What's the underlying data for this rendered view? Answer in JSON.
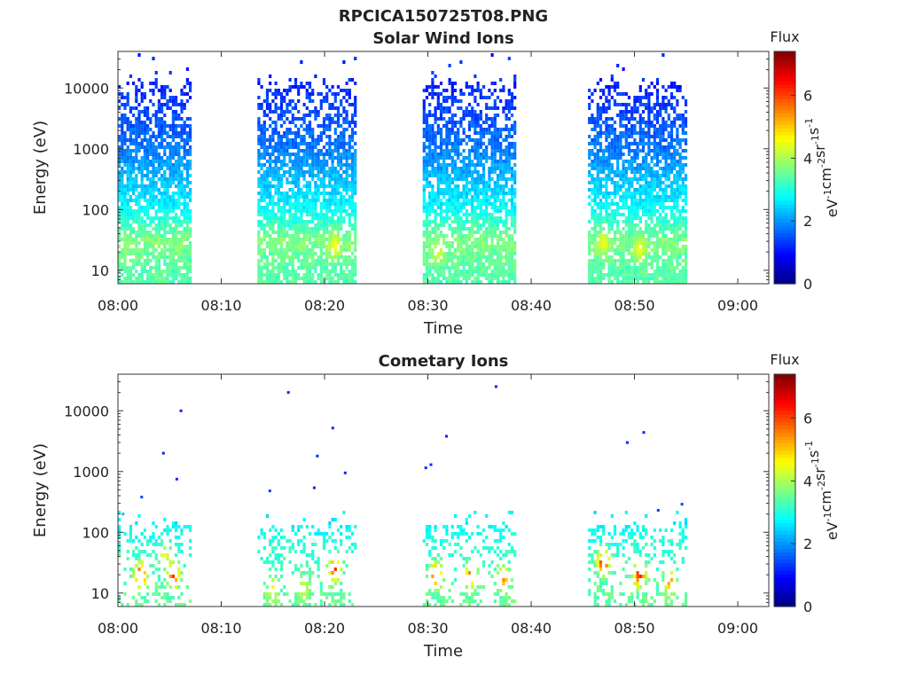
{
  "figure_title": "RPCICA150725T08.PNG",
  "colorbar": {
    "title": "Flux",
    "ticks": [
      "0",
      "2",
      "4",
      "6"
    ],
    "tick_values": [
      0,
      2,
      4,
      6
    ],
    "range": [
      0,
      7.4
    ],
    "unit_parts": [
      "eV",
      "-1",
      "cm",
      "-2",
      "sr",
      "-1",
      "s",
      "-1"
    ]
  },
  "chart_data": [
    {
      "type": "heatmap",
      "title": "Solar Wind Ions",
      "xlabel": "Time",
      "ylabel": "Energy (eV)",
      "x_ticks": [
        "08:00",
        "08:10",
        "08:20",
        "08:30",
        "08:40",
        "08:50",
        "09:00"
      ],
      "x_tick_minutes": [
        0,
        10,
        20,
        30,
        40,
        50,
        60
      ],
      "y_ticks": [
        "10",
        "100",
        "1000",
        "10000"
      ],
      "y_tick_values": [
        10,
        100,
        1000,
        10000
      ],
      "yscale": "log",
      "xlim_minutes": [
        0,
        63
      ],
      "ylim": [
        6,
        40000
      ],
      "colormap": "jet",
      "grid": false,
      "data_blocks_minutes": [
        [
          0,
          7
        ],
        [
          13.5,
          23
        ],
        [
          29.5,
          38.5
        ],
        [
          45.5,
          55
        ]
      ],
      "flux_profile": [
        {
          "energy": 10,
          "flux": 3.4
        },
        {
          "energy": 30,
          "flux": 3.7
        },
        {
          "energy": 100,
          "flux": 2.8
        },
        {
          "energy": 1000,
          "flux": 1.8
        },
        {
          "energy": 10000,
          "flux": 1.2
        }
      ],
      "hotspots": [
        {
          "time": 21,
          "energy": 25,
          "flux": 4.6
        },
        {
          "time": 31,
          "energy": 20,
          "flux": 4.3
        },
        {
          "time": 47,
          "energy": 28,
          "flux": 4.5
        },
        {
          "time": 50.5,
          "energy": 22,
          "flux": 4.6
        }
      ]
    },
    {
      "type": "heatmap",
      "title": "Cometary Ions",
      "xlabel": "Time",
      "ylabel": "Energy (eV)",
      "x_ticks": [
        "08:00",
        "08:10",
        "08:20",
        "08:30",
        "08:40",
        "08:50",
        "09:00"
      ],
      "x_tick_minutes": [
        0,
        10,
        20,
        30,
        40,
        50,
        60
      ],
      "y_ticks": [
        "10",
        "100",
        "1000",
        "10000"
      ],
      "y_tick_values": [
        10,
        100,
        1000,
        10000
      ],
      "yscale": "log",
      "xlim_minutes": [
        0,
        63
      ],
      "ylim": [
        6,
        40000
      ],
      "colormap": "jet",
      "grid": false,
      "data_blocks_minutes": [
        [
          0,
          7
        ],
        [
          13.5,
          23
        ],
        [
          29.5,
          38.5
        ],
        [
          45.5,
          55
        ]
      ],
      "flux_profile": [
        {
          "energy": 8,
          "flux": 3.5
        },
        {
          "energy": 50,
          "flux": 3.1
        },
        {
          "energy": 150,
          "flux": 2.7
        }
      ],
      "hotspots": [
        {
          "time": 2.2,
          "energy": 20,
          "flux": 6.4
        },
        {
          "time": 5.4,
          "energy": 20,
          "flux": 6.2
        },
        {
          "time": 4.5,
          "energy": 40,
          "flux": 4.6
        },
        {
          "time": 15,
          "energy": 12,
          "flux": 4.5
        },
        {
          "time": 18,
          "energy": 12,
          "flux": 4.3
        },
        {
          "time": 21,
          "energy": 25,
          "flux": 6.2
        },
        {
          "time": 30.8,
          "energy": 20,
          "flux": 6.3
        },
        {
          "time": 34.2,
          "energy": 20,
          "flux": 5.8
        },
        {
          "time": 37.3,
          "energy": 18,
          "flux": 5.6
        },
        {
          "time": 47,
          "energy": 32,
          "flux": 6.5
        },
        {
          "time": 50.5,
          "energy": 20,
          "flux": 6.4
        },
        {
          "time": 53.5,
          "energy": 15,
          "flux": 5.4
        }
      ],
      "sparse_points": [
        {
          "time": 0.5,
          "energy": 200,
          "flux": 2.3
        },
        {
          "time": 2.3,
          "energy": 380,
          "flux": 1.4
        },
        {
          "time": 4.4,
          "energy": 2000,
          "flux": 1.2
        },
        {
          "time": 5.7,
          "energy": 750,
          "flux": 1.2
        },
        {
          "time": 6.1,
          "energy": 10000,
          "flux": 1.2
        },
        {
          "time": 14.7,
          "energy": 480,
          "flux": 1.3
        },
        {
          "time": 16.5,
          "energy": 20000,
          "flux": 1.2
        },
        {
          "time": 19.0,
          "energy": 540,
          "flux": 1.2
        },
        {
          "time": 19.3,
          "energy": 1800,
          "flux": 1.2
        },
        {
          "time": 20.8,
          "energy": 5200,
          "flux": 1.2
        },
        {
          "time": 22.0,
          "energy": 950,
          "flux": 1.2
        },
        {
          "time": 29.8,
          "energy": 1150,
          "flux": 1.2
        },
        {
          "time": 30.3,
          "energy": 1300,
          "flux": 1.2
        },
        {
          "time": 31.8,
          "energy": 3800,
          "flux": 1.2
        },
        {
          "time": 36.6,
          "energy": 25000,
          "flux": 1.2
        },
        {
          "time": 49.3,
          "energy": 3000,
          "flux": 1.2
        },
        {
          "time": 50.9,
          "energy": 4400,
          "flux": 1.2
        },
        {
          "time": 52.3,
          "energy": 230,
          "flux": 1.4
        },
        {
          "time": 54.6,
          "energy": 290,
          "flux": 1.4
        }
      ]
    }
  ]
}
